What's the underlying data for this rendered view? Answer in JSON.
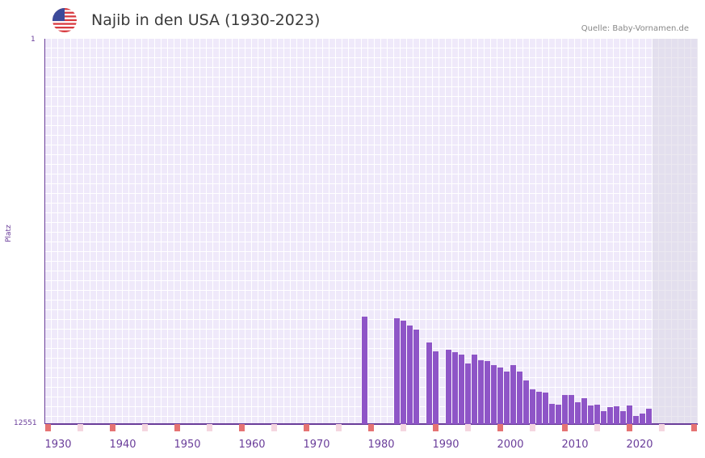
{
  "header": {
    "title": "Najib in den USA (1930-2023)",
    "source": "Quelle: Baby-Vornamen.de",
    "flag": "us-flag-icon"
  },
  "colors": {
    "bar": "#8e55c7",
    "axis": "#6a3d9a",
    "grid_bg": "#efe9fa",
    "future_bg": "#e3dfee",
    "decade_mark": "#e57373",
    "half_decade_mark": "#f5d6e0"
  },
  "chart_data": {
    "type": "bar",
    "title": "Najib in den USA (1930-2023)",
    "xlabel": "",
    "ylabel": "Platz",
    "ylim": [
      12551,
      1
    ],
    "y_ticks": [
      "1",
      "12551"
    ],
    "x_ticks": [
      "1930",
      "1940",
      "1950",
      "1960",
      "1970",
      "1980",
      "1990",
      "2000",
      "2010",
      "2020"
    ],
    "x_range": [
      1930,
      2030
    ],
    "categories": [
      1979,
      1984,
      1985,
      1986,
      1987,
      1989,
      1990,
      1992,
      1993,
      1994,
      1995,
      1996,
      1997,
      1998,
      1999,
      2000,
      2001,
      2002,
      2003,
      2004,
      2005,
      2006,
      2007,
      2008,
      2009,
      2010,
      2011,
      2012,
      2013,
      2014,
      2015,
      2016,
      2017,
      2018,
      2019,
      2020,
      2021,
      2022,
      2023
    ],
    "values": [
      9060,
      9110,
      9190,
      9330,
      9460,
      9900,
      10170,
      10120,
      10200,
      10280,
      10590,
      10300,
      10460,
      10490,
      10620,
      10720,
      10850,
      10640,
      10830,
      11120,
      11410,
      11490,
      11520,
      11890,
      11910,
      11600,
      11600,
      11830,
      11700,
      11940,
      11910,
      12120,
      11990,
      11960,
      12120,
      11940,
      12300,
      12200,
      12040
    ]
  }
}
